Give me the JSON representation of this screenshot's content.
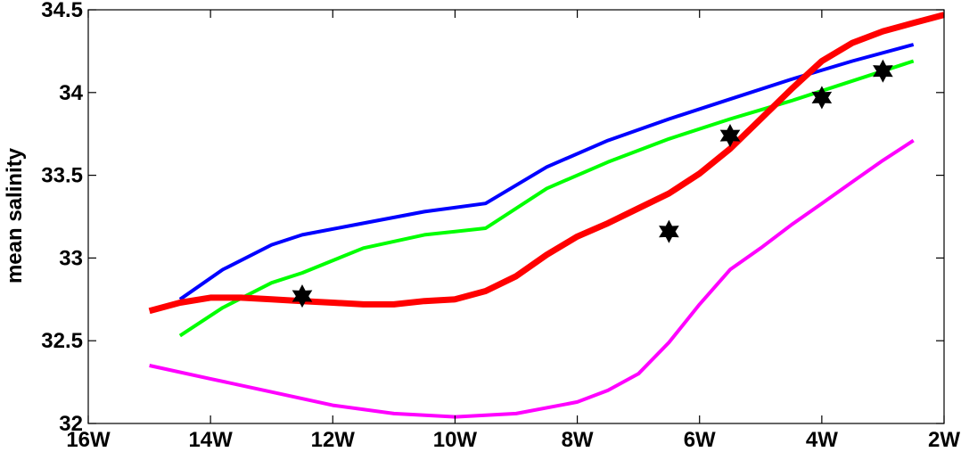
{
  "chart_data": {
    "type": "line",
    "title": "",
    "xlabel": "",
    "ylabel": "mean salinity",
    "xlim": [
      -16,
      -2
    ],
    "ylim": [
      32,
      34.5
    ],
    "xticks": [
      -16,
      -14,
      -12,
      -10,
      -8,
      -6,
      -4,
      -2
    ],
    "xtick_labels": [
      "16W",
      "14W",
      "12W",
      "10W",
      "8W",
      "6W",
      "4W",
      "2W"
    ],
    "yticks": [
      32,
      32.5,
      33,
      33.5,
      34,
      34.5
    ],
    "ytick_labels": [
      "32",
      "32.5",
      "33",
      "33.5",
      "34",
      "34.5"
    ],
    "grid": false,
    "series": [
      {
        "kind": "line",
        "color": "#0000ff",
        "x": [
          -14.5,
          -13.8,
          -13.0,
          -12.5,
          -11.5,
          -10.5,
          -9.5,
          -8.5,
          -7.5,
          -6.5,
          -5.5,
          -4.5,
          -3.5,
          -2.5
        ],
        "y": [
          32.75,
          32.93,
          33.08,
          33.14,
          33.21,
          33.28,
          33.33,
          33.55,
          33.71,
          33.84,
          33.96,
          34.08,
          34.19,
          34.29
        ]
      },
      {
        "kind": "line",
        "color": "#00ff00",
        "x": [
          -14.5,
          -13.8,
          -13.0,
          -12.5,
          -11.5,
          -10.5,
          -9.5,
          -8.5,
          -7.5,
          -6.5,
          -5.5,
          -4.5,
          -3.5,
          -2.5
        ],
        "y": [
          32.53,
          32.7,
          32.85,
          32.91,
          33.06,
          33.14,
          33.18,
          33.42,
          33.58,
          33.72,
          33.84,
          33.95,
          34.07,
          34.19
        ]
      },
      {
        "kind": "line",
        "color": "#ff0000",
        "x": [
          -15.0,
          -14.5,
          -14.0,
          -13.5,
          -13.0,
          -12.5,
          -12.0,
          -11.5,
          -11.0,
          -10.5,
          -10.0,
          -9.5,
          -9.0,
          -8.5,
          -8.0,
          -7.5,
          -7.0,
          -6.5,
          -6.0,
          -5.5,
          -5.0,
          -4.5,
          -4.0,
          -3.5,
          -3.0,
          -2.5,
          -2.0
        ],
        "y": [
          32.68,
          32.73,
          32.76,
          32.76,
          32.75,
          32.74,
          32.73,
          32.72,
          32.72,
          32.74,
          32.75,
          32.8,
          32.89,
          33.02,
          33.13,
          33.21,
          33.3,
          33.39,
          33.51,
          33.66,
          33.84,
          34.02,
          34.19,
          34.3,
          34.37,
          34.42,
          34.47
        ]
      },
      {
        "kind": "line",
        "color": "#ff00ff",
        "x": [
          -15.0,
          -14.0,
          -13.0,
          -12.0,
          -11.0,
          -10.0,
          -9.0,
          -8.0,
          -7.5,
          -7.0,
          -6.5,
          -6.0,
          -5.5,
          -5.0,
          -4.5,
          -4.0,
          -3.5,
          -3.0,
          -2.5
        ],
        "y": [
          32.35,
          32.27,
          32.19,
          32.11,
          32.06,
          32.04,
          32.06,
          32.13,
          32.2,
          32.3,
          32.49,
          32.72,
          32.93,
          33.06,
          33.2,
          33.33,
          33.46,
          33.59,
          33.71
        ]
      },
      {
        "kind": "scatter",
        "color": "#000000",
        "marker": "hexagram",
        "x": [
          -12.5,
          -6.5,
          -5.5,
          -4.0,
          -3.0
        ],
        "y": [
          32.77,
          33.16,
          33.74,
          33.97,
          34.13
        ]
      }
    ]
  }
}
